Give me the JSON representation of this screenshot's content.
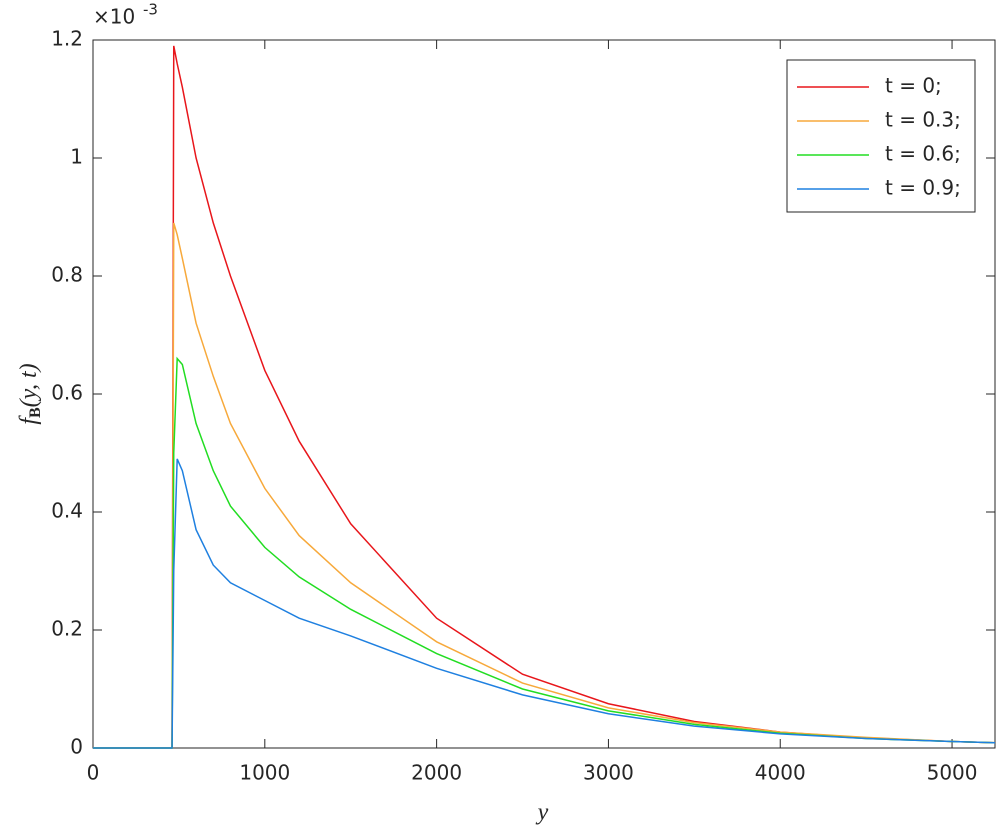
{
  "chart_data": {
    "type": "line",
    "xlabel": "y",
    "ylabel": "f",
    "ylabel_sub": "B",
    "ylabel_rest": "(y, t)",
    "y_exponent_base": "×10",
    "y_exponent": "-3",
    "x": [
      0,
      450,
      460,
      470,
      490,
      520,
      600,
      700,
      800,
      1000,
      1200,
      1500,
      2000,
      2500,
      3000,
      3500,
      4000,
      4500,
      5000,
      5250
    ],
    "series": [
      {
        "name": "t = 0;",
        "color": "#e8161b",
        "values": [
          0,
          0,
          0,
          1.19,
          1.16,
          1.12,
          1.0,
          0.89,
          0.8,
          0.64,
          0.52,
          0.38,
          0.22,
          0.125,
          0.075,
          0.045,
          0.027,
          0.017,
          0.011,
          0.009
        ]
      },
      {
        "name": "t = 0.3;",
        "color": "#f7a93b",
        "values": [
          0,
          0,
          0,
          0.89,
          0.87,
          0.83,
          0.72,
          0.63,
          0.55,
          0.44,
          0.36,
          0.28,
          0.18,
          0.11,
          0.068,
          0.043,
          0.027,
          0.018,
          0.011,
          0.009
        ]
      },
      {
        "name": "t = 0.6;",
        "color": "#22dd22",
        "values": [
          0,
          0,
          0,
          0.5,
          0.66,
          0.65,
          0.55,
          0.47,
          0.41,
          0.34,
          0.29,
          0.235,
          0.16,
          0.1,
          0.063,
          0.04,
          0.025,
          0.016,
          0.011,
          0.009
        ]
      },
      {
        "name": "t = 0.9;",
        "color": "#1f80e0",
        "values": [
          0,
          0,
          0,
          0.3,
          0.49,
          0.47,
          0.37,
          0.31,
          0.28,
          0.25,
          0.22,
          0.19,
          0.135,
          0.09,
          0.058,
          0.037,
          0.024,
          0.016,
          0.011,
          0.009
        ]
      }
    ],
    "xlim": [
      0,
      5250
    ],
    "xticks": [
      0,
      1000,
      2000,
      3000,
      4000,
      5000
    ],
    "ylim": [
      0,
      1.2
    ],
    "yticks": [
      0,
      0.2,
      0.4,
      0.6,
      0.8,
      1,
      1.2
    ],
    "grid": false,
    "legend": "northeast"
  }
}
